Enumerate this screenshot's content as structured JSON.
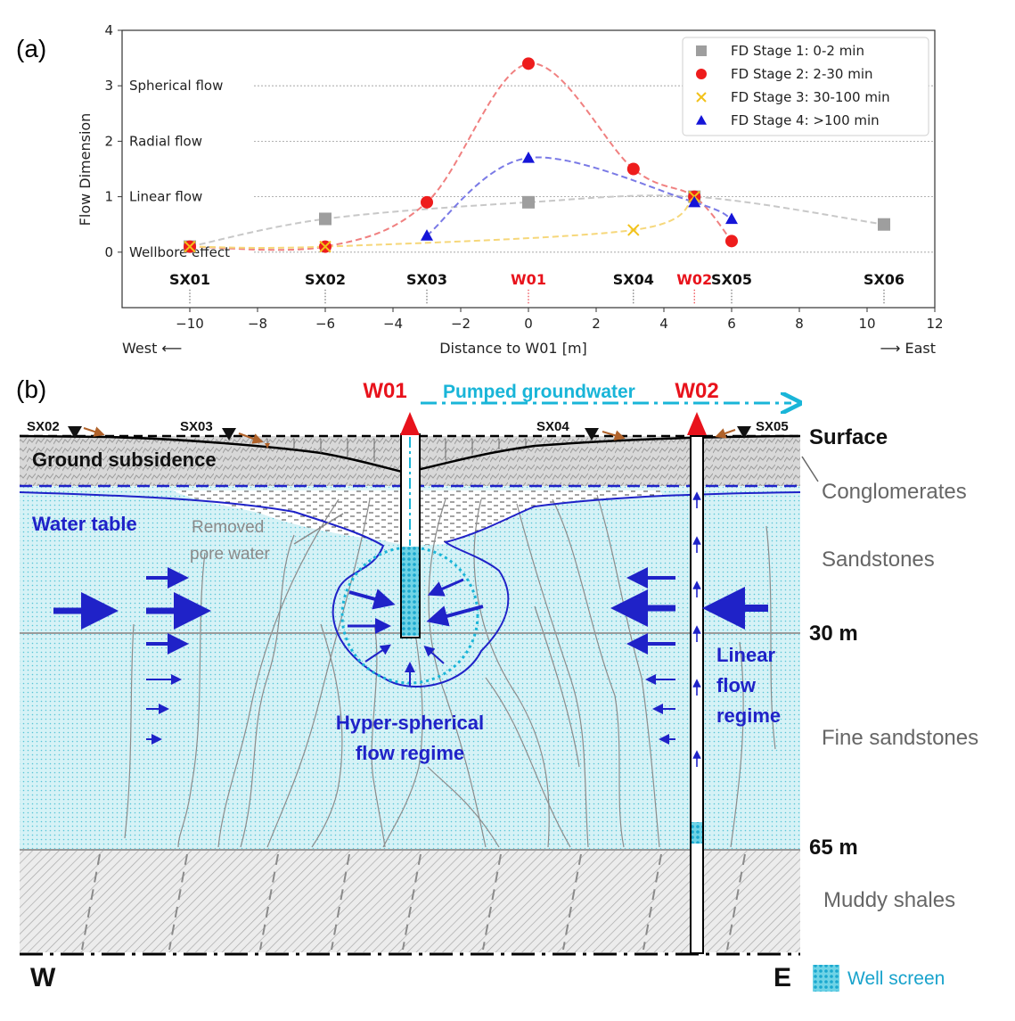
{
  "panel_a_label": "(a)",
  "panel_b_label": "(b)",
  "chart_data": {
    "type": "line",
    "xlabel": "Distance to W01 [m]",
    "ylabel": "Flow Dimension",
    "xlim": [
      -12,
      12
    ],
    "ylim": [
      -1,
      4
    ],
    "x_ticks": [
      "-10",
      "-8",
      "-6",
      "-4",
      "-2",
      "0",
      "2",
      "4",
      "6",
      "8",
      "10",
      "12"
    ],
    "y_ticks": [
      "0",
      "1",
      "2",
      "3",
      "4"
    ],
    "direction_left": "West ⟵",
    "direction_right": "⟶ East",
    "flow_levels": [
      {
        "y": 0,
        "label": "Wellbore effect"
      },
      {
        "y": 1,
        "label": "Linear flow"
      },
      {
        "y": 2,
        "label": "Radial flow"
      },
      {
        "y": 3,
        "label": "Spherical flow"
      }
    ],
    "sites": [
      {
        "name": "SX01",
        "x": -10,
        "highlight": false
      },
      {
        "name": "SX02",
        "x": -6,
        "highlight": false
      },
      {
        "name": "SX03",
        "x": -3,
        "highlight": false
      },
      {
        "name": "W01",
        "x": 0,
        "highlight": true
      },
      {
        "name": "SX04",
        "x": 3.1,
        "highlight": false
      },
      {
        "name": "W02",
        "x": 4.9,
        "highlight": true
      },
      {
        "name": "SX05",
        "x": 6,
        "highlight": false
      },
      {
        "name": "SX06",
        "x": 10.5,
        "highlight": false
      }
    ],
    "legend_position": "top-right",
    "grid": "horizontal dotted at flow levels",
    "series": [
      {
        "name": "FD Stage 1: 0-2 min",
        "marker": "square",
        "color": "#9e9e9e",
        "x": [
          -10,
          -6,
          0,
          4.9,
          10.5
        ],
        "y": [
          0.1,
          0.6,
          0.9,
          1.0,
          0.5
        ]
      },
      {
        "name": "FD Stage 2: 2-30 min",
        "marker": "circle",
        "color": "#ee1c1c",
        "x": [
          -10,
          -6,
          -3,
          0,
          3.1,
          4.9,
          6
        ],
        "y": [
          0.1,
          0.1,
          0.9,
          3.4,
          1.5,
          1.0,
          0.2
        ]
      },
      {
        "name": "FD Stage 3: 30-100 min",
        "marker": "x",
        "color": "#f2c21a",
        "x": [
          -10,
          -6,
          3.1,
          4.9
        ],
        "y": [
          0.1,
          0.1,
          0.4,
          1.0
        ]
      },
      {
        "name": "FD Stage 4: >100 min",
        "marker": "triangle",
        "color": "#1515d8",
        "x": [
          -3,
          0,
          4.9,
          6
        ],
        "y": [
          0.3,
          1.7,
          0.9,
          0.6
        ]
      }
    ]
  },
  "section": {
    "well_w01": "W01",
    "well_w02": "W02",
    "pumped_label": "Pumped groundwater",
    "stations": [
      "SX02",
      "SX03",
      "SX04",
      "SX05"
    ],
    "surface": "Surface",
    "ground_subsidence": "Ground subsidence",
    "water_table": "Water table",
    "removed_pore_water": [
      "Removed",
      "pore water"
    ],
    "hyper_spherical": [
      "Hyper-spherical",
      "flow regime"
    ],
    "linear_regime": [
      "Linear",
      "flow",
      "regime"
    ],
    "depth_30": "30 m",
    "depth_65": "65 m",
    "layers": [
      "Conglomerates",
      "Sandstones",
      "Fine sandstones",
      "Muddy shales"
    ],
    "west": "W",
    "east": "E",
    "well_screen": "Well screen",
    "colors": {
      "red": "#e8131c",
      "cyan": "#19b5d8",
      "blue": "#1f22c8",
      "aquifer": "#d4f1f5"
    }
  }
}
